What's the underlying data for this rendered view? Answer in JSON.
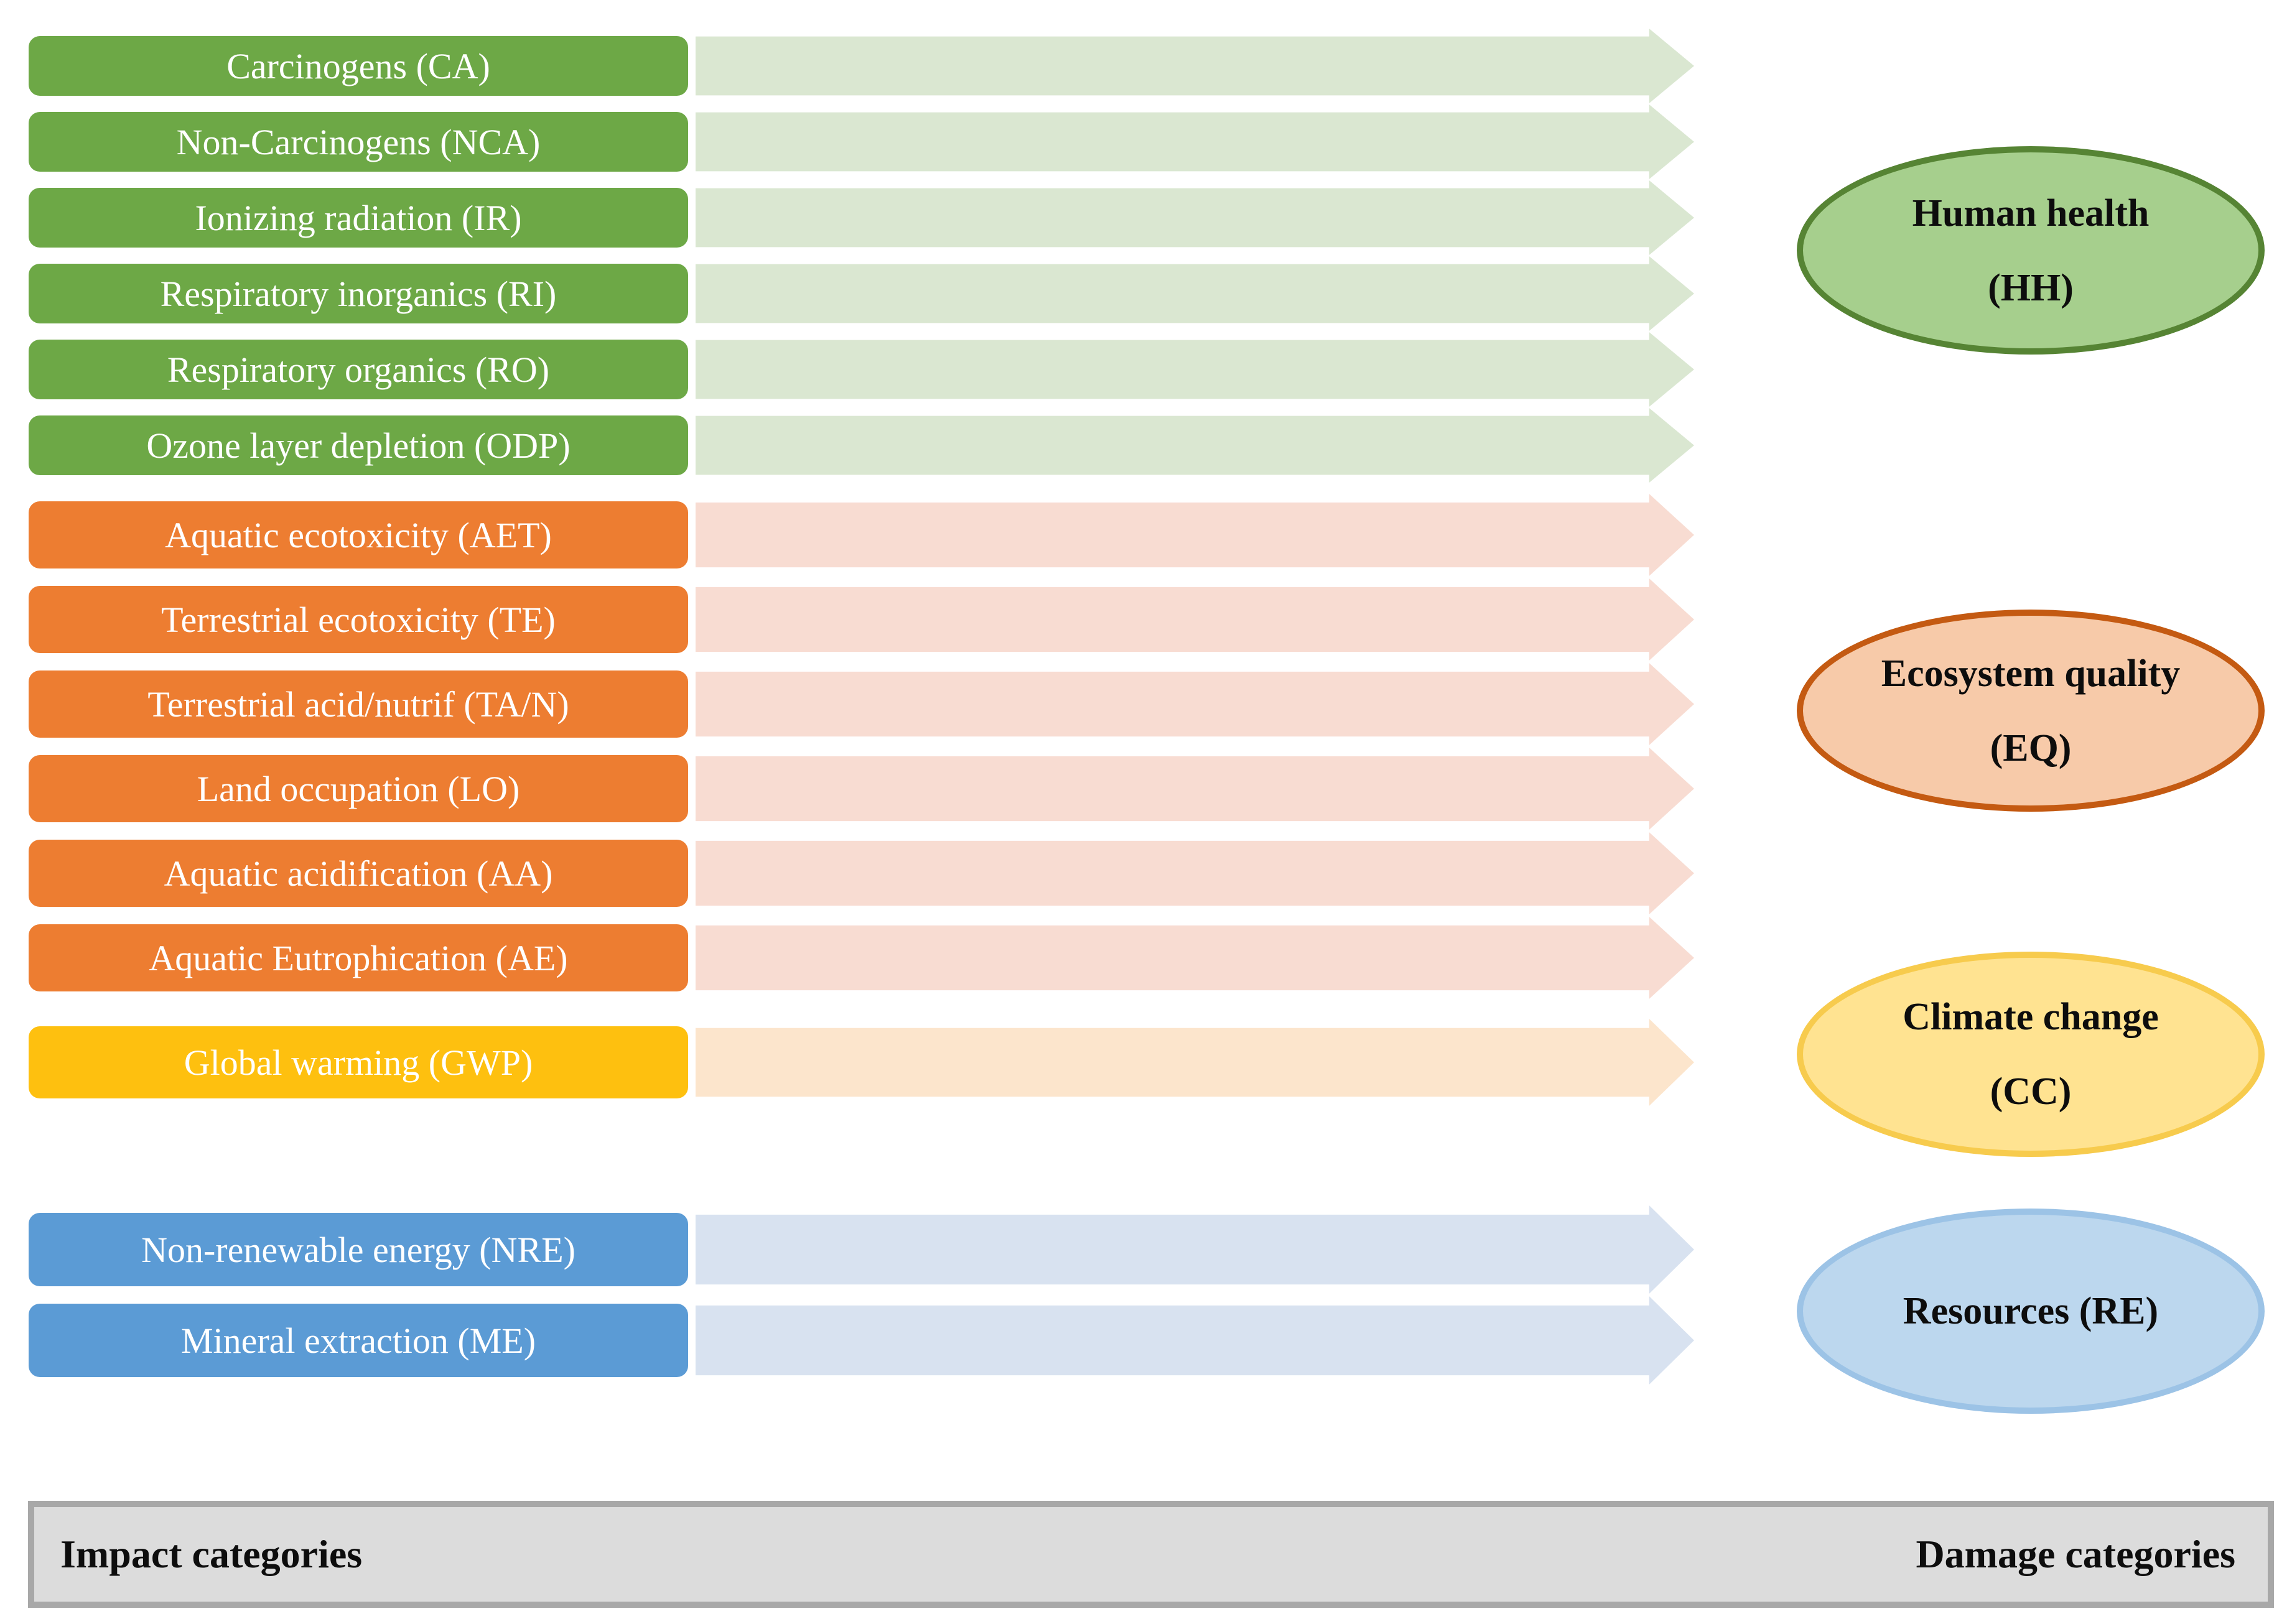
{
  "groups": [
    {
      "id": "human-health",
      "box_color": "#6da846",
      "arrow_color": "#dae7d1",
      "impact_categories": [
        "Carcinogens (CA)",
        "Non-Carcinogens (NCA)",
        "Ionizing radiation (IR)",
        "Respiratory inorganics (RI)",
        "Respiratory organics (RO)",
        "Ozone layer depletion (ODP)"
      ],
      "damage": {
        "line1": "Human health",
        "line2": "(HH)",
        "fill": "#a6cf8d",
        "border": "#568434"
      }
    },
    {
      "id": "ecosystem-quality",
      "box_color": "#ed7d31",
      "arrow_color": "#f8dcd2",
      "impact_categories": [
        "Aquatic ecotoxicity (AET)",
        "Terrestrial ecotoxicity (TE)",
        "Terrestrial acid/nutrif (TA/N)",
        "Land occupation (LO)",
        "Aquatic acidification (AA)",
        "Aquatic Eutrophication (AE)"
      ],
      "damage": {
        "line1": "Ecosystem quality",
        "line2": "(EQ)",
        "fill": "#f7caa9",
        "border": "#c45a12"
      }
    },
    {
      "id": "climate-change",
      "box_color": "#fec00f",
      "arrow_color": "#fce5cc",
      "impact_categories": [
        "Global warming (GWP)"
      ],
      "damage": {
        "line1": "Climate change",
        "line2": "(CC)",
        "fill": "#ffe391",
        "border": "#f7cb4d"
      }
    },
    {
      "id": "resources",
      "box_color": "#5b9bd5",
      "arrow_color": "#d8e2f0",
      "impact_categories": [
        "Non-renewable energy (NRE)",
        "Mineral extraction (ME)"
      ],
      "damage": {
        "line1": "Resources (RE)",
        "line2": "",
        "fill": "#bcd7ee",
        "border": "#9cc3e6"
      }
    }
  ],
  "box_text_color": "#ffffff",
  "footer": {
    "left_label": "Impact categories",
    "right_label": "Damage categories",
    "fill": "#dcdcdc",
    "border": "#a8a8a8"
  }
}
